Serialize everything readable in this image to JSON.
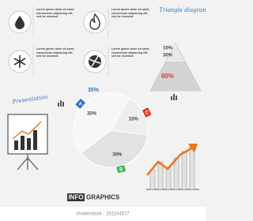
{
  "text_blocks": [
    "Lorem ipsum dolor sit amet, consectetur adipiscing elit, sed do eiusmod.",
    "Lorem ipsum dolor sit amet, consectetur adipiscing elit, sed do eiusmod.",
    "Lorem ipsum dolor sit amet, consectetur adipiscing elit, sed do eiusmod.",
    "Lorem ipsum dolor sit amet, consectetur adipiscing elit, sed do eiusmod."
  ],
  "triangle": {
    "title": "Triangle diagram",
    "levels": [
      {
        "value": 10,
        "label": "10%",
        "color": "#444444"
      },
      {
        "value": 30,
        "label": "30%",
        "color": "#444444"
      },
      {
        "value": 60,
        "label": "60%",
        "color": "#d9352a"
      }
    ]
  },
  "pie": {
    "callout": {
      "value": 35,
      "label": "35%"
    },
    "slices": [
      {
        "name": "C",
        "value": 15,
        "value_label": "15%",
        "color": "#d9352a"
      },
      {
        "name": "B",
        "value": 30,
        "value_label": "30%",
        "color": "#3bb34a"
      },
      {
        "name": "A",
        "value": 35,
        "value_label": "35%",
        "color": "#2a73c6"
      }
    ]
  },
  "presentation": "Presentation",
  "footer": {
    "info": "INFO",
    "graphics": "GRAPHICS"
  },
  "watermark": "shutterstock · 251154577"
}
